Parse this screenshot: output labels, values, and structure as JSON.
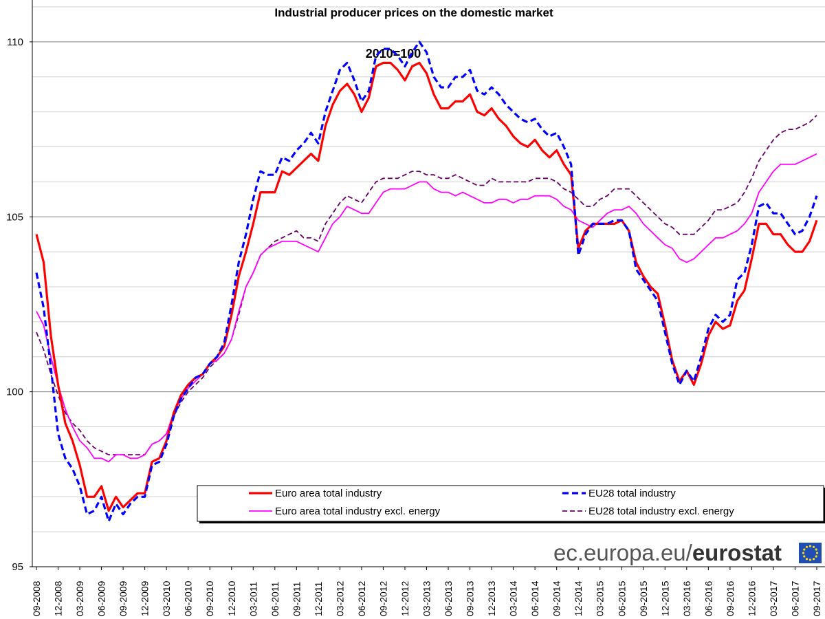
{
  "chart_data": {
    "type": "line",
    "title": "Industrial producer prices on the domestic market",
    "subtitle": "2010=100",
    "xlabel": "",
    "ylabel": "",
    "ylim": [
      95,
      111
    ],
    "yticks": [
      95,
      100,
      105,
      110
    ],
    "grid": true,
    "legend_position": "bottom-right",
    "x": [
      "09-2008",
      "10-2008",
      "11-2008",
      "12-2008",
      "01-2009",
      "02-2009",
      "03-2009",
      "04-2009",
      "05-2009",
      "06-2009",
      "07-2009",
      "08-2009",
      "09-2009",
      "10-2009",
      "11-2009",
      "12-2009",
      "01-2010",
      "02-2010",
      "03-2010",
      "04-2010",
      "05-2010",
      "06-2010",
      "07-2010",
      "08-2010",
      "09-2010",
      "10-2010",
      "11-2010",
      "12-2010",
      "01-2011",
      "02-2011",
      "03-2011",
      "04-2011",
      "05-2011",
      "06-2011",
      "07-2011",
      "08-2011",
      "09-2011",
      "10-2011",
      "11-2011",
      "12-2011",
      "01-2012",
      "02-2012",
      "03-2012",
      "04-2012",
      "05-2012",
      "06-2012",
      "07-2012",
      "08-2012",
      "09-2012",
      "10-2012",
      "11-2012",
      "12-2012",
      "01-2013",
      "02-2013",
      "03-2013",
      "04-2013",
      "05-2013",
      "06-2013",
      "07-2013",
      "08-2013",
      "09-2013",
      "10-2013",
      "11-2013",
      "12-2013",
      "01-2014",
      "02-2014",
      "03-2014",
      "04-2014",
      "05-2014",
      "06-2014",
      "07-2014",
      "08-2014",
      "09-2014",
      "10-2014",
      "11-2014",
      "12-2014",
      "01-2015",
      "02-2015",
      "03-2015",
      "04-2015",
      "05-2015",
      "06-2015",
      "07-2015",
      "08-2015",
      "09-2015",
      "10-2015",
      "11-2015",
      "12-2015",
      "01-2016",
      "02-2016",
      "03-2016",
      "04-2016",
      "05-2016",
      "06-2016",
      "07-2016",
      "08-2016",
      "09-2016",
      "10-2016",
      "11-2016",
      "12-2016",
      "01-2017",
      "02-2017",
      "03-2017",
      "04-2017",
      "05-2017",
      "06-2017",
      "07-2017",
      "08-2017",
      "09-2017"
    ],
    "tick_labels": [
      "09-2008",
      "12-2008",
      "03-2009",
      "06-2009",
      "09-2009",
      "12-2009",
      "03-2010",
      "06-2010",
      "09-2010",
      "12-2010",
      "03-2011",
      "06-2011",
      "09-2011",
      "12-2011",
      "03-2012",
      "06-2012",
      "09-2012",
      "12-2012",
      "03-2013",
      "06-2013",
      "09-2013",
      "12-2013",
      "03-2014",
      "06-2014",
      "09-2014",
      "12-2014",
      "03-2015",
      "06-2015",
      "09-2015",
      "12-2015",
      "03-2016",
      "06-2016",
      "09-2016",
      "12-2016",
      "03-2017",
      "06-2017",
      "09-2017"
    ],
    "series": [
      {
        "name": "Euro area total industry",
        "color": "#ff0000",
        "style": "solid-thick",
        "values": [
          104.5,
          103.7,
          101.6,
          100.2,
          99.1,
          98.6,
          97.9,
          97.0,
          97.0,
          97.3,
          96.6,
          97.0,
          96.7,
          96.9,
          97.1,
          97.1,
          98.0,
          98.1,
          98.6,
          99.4,
          99.9,
          100.2,
          100.4,
          100.5,
          100.8,
          101.0,
          101.3,
          102.2,
          103.3,
          104.0,
          104.8,
          105.7,
          105.7,
          105.7,
          106.3,
          106.2,
          106.4,
          106.6,
          106.8,
          106.6,
          107.6,
          108.2,
          108.6,
          108.8,
          108.5,
          108.0,
          108.4,
          109.3,
          109.4,
          109.4,
          109.2,
          108.9,
          109.3,
          109.4,
          109.1,
          108.5,
          108.1,
          108.1,
          108.3,
          108.3,
          108.5,
          108.0,
          107.9,
          108.1,
          107.8,
          107.6,
          107.3,
          107.1,
          107.0,
          107.2,
          106.9,
          106.7,
          106.9,
          106.5,
          106.2,
          104.1,
          104.6,
          104.8,
          104.8,
          104.8,
          104.8,
          104.9,
          104.6,
          103.7,
          103.3,
          103.0,
          102.8,
          101.9,
          100.9,
          100.3,
          100.6,
          100.2,
          100.8,
          101.6,
          102.0,
          101.8,
          101.9,
          102.6,
          102.9,
          103.8,
          104.8,
          104.8,
          104.5,
          104.5,
          104.2,
          104.0,
          104.0,
          104.3,
          104.9
        ]
      },
      {
        "name": "EU28 total industry",
        "color": "#0000ff",
        "style": "dashed-thick",
        "values": [
          103.4,
          102.4,
          100.7,
          98.8,
          98.1,
          97.8,
          97.3,
          96.5,
          96.6,
          97.0,
          96.3,
          96.8,
          96.5,
          96.8,
          97.0,
          97.0,
          97.9,
          98.0,
          98.5,
          99.3,
          99.8,
          100.1,
          100.4,
          100.5,
          100.8,
          101.0,
          101.4,
          102.5,
          103.7,
          104.5,
          105.5,
          106.3,
          106.2,
          106.2,
          106.7,
          106.6,
          106.9,
          107.1,
          107.4,
          107.1,
          108.0,
          108.6,
          109.2,
          109.4,
          108.9,
          108.3,
          108.6,
          109.6,
          109.8,
          109.8,
          109.6,
          109.3,
          109.7,
          110.0,
          109.7,
          109.0,
          108.7,
          108.7,
          109.0,
          109.0,
          109.2,
          108.6,
          108.5,
          108.7,
          108.5,
          108.2,
          108.0,
          107.8,
          107.7,
          107.8,
          107.5,
          107.3,
          107.4,
          107.0,
          106.5,
          103.9,
          104.5,
          104.8,
          104.8,
          104.8,
          104.9,
          104.9,
          104.6,
          103.5,
          103.2,
          102.9,
          102.6,
          101.7,
          100.8,
          100.2,
          100.6,
          100.3,
          101.0,
          101.8,
          102.2,
          102.0,
          102.2,
          103.2,
          103.4,
          104.2,
          105.3,
          105.4,
          105.1,
          105.1,
          104.8,
          104.5,
          104.6,
          105.0,
          105.6
        ]
      },
      {
        "name": "Euro area total industry excl. energy",
        "color": "#ff00ff",
        "style": "solid-thin",
        "values": [
          102.3,
          101.9,
          101.0,
          100.2,
          99.5,
          99.0,
          98.6,
          98.4,
          98.1,
          98.1,
          98.0,
          98.2,
          98.2,
          98.1,
          98.1,
          98.2,
          98.5,
          98.6,
          98.8,
          99.4,
          99.8,
          100.1,
          100.3,
          100.5,
          100.8,
          100.9,
          101.1,
          101.5,
          102.3,
          103.0,
          103.4,
          103.9,
          104.1,
          104.2,
          104.3,
          104.3,
          104.3,
          104.2,
          104.1,
          104.0,
          104.4,
          104.8,
          105.0,
          105.3,
          105.2,
          105.1,
          105.1,
          105.4,
          105.7,
          105.8,
          105.8,
          105.8,
          105.9,
          106.0,
          106.0,
          105.8,
          105.7,
          105.7,
          105.6,
          105.7,
          105.6,
          105.5,
          105.4,
          105.4,
          105.5,
          105.5,
          105.4,
          105.5,
          105.5,
          105.6,
          105.6,
          105.6,
          105.5,
          105.3,
          105.2,
          104.9,
          104.8,
          104.7,
          104.9,
          105.1,
          105.2,
          105.2,
          105.3,
          105.1,
          104.8,
          104.6,
          104.4,
          104.2,
          104.1,
          103.8,
          103.7,
          103.8,
          104.0,
          104.2,
          104.4,
          104.4,
          104.5,
          104.6,
          104.8,
          105.1,
          105.7,
          106.0,
          106.3,
          106.5,
          106.5,
          106.5,
          106.6,
          106.7,
          106.8
        ]
      },
      {
        "name": "EU28 total industry excl. energy",
        "color": "#660066",
        "style": "dashed-thin",
        "values": [
          101.7,
          101.2,
          100.5,
          99.9,
          99.4,
          99.1,
          98.9,
          98.6,
          98.4,
          98.3,
          98.2,
          98.2,
          98.2,
          98.2,
          98.2,
          98.2,
          98.5,
          98.6,
          98.8,
          99.3,
          99.7,
          100.0,
          100.2,
          100.4,
          100.7,
          100.9,
          101.1,
          101.5,
          102.2,
          103.0,
          103.4,
          103.9,
          104.1,
          104.3,
          104.4,
          104.5,
          104.6,
          104.4,
          104.4,
          104.3,
          104.8,
          105.1,
          105.4,
          105.6,
          105.5,
          105.4,
          105.7,
          106.0,
          106.1,
          106.1,
          106.1,
          106.2,
          106.3,
          106.3,
          106.2,
          106.2,
          106.1,
          106.1,
          106.2,
          106.1,
          106.0,
          105.9,
          105.9,
          106.1,
          106.0,
          106.0,
          106.0,
          106.0,
          106.0,
          106.1,
          106.1,
          106.1,
          106.0,
          105.8,
          105.7,
          105.5,
          105.3,
          105.3,
          105.5,
          105.6,
          105.8,
          105.8,
          105.8,
          105.6,
          105.4,
          105.2,
          105.0,
          104.8,
          104.7,
          104.5,
          104.5,
          104.5,
          104.7,
          104.9,
          105.2,
          105.2,
          105.3,
          105.4,
          105.7,
          106.1,
          106.6,
          106.9,
          107.2,
          107.4,
          107.5,
          107.5,
          107.6,
          107.7,
          107.9
        ]
      }
    ]
  },
  "branding": {
    "site": "ec.europa.eu/",
    "name": "eurostat"
  }
}
